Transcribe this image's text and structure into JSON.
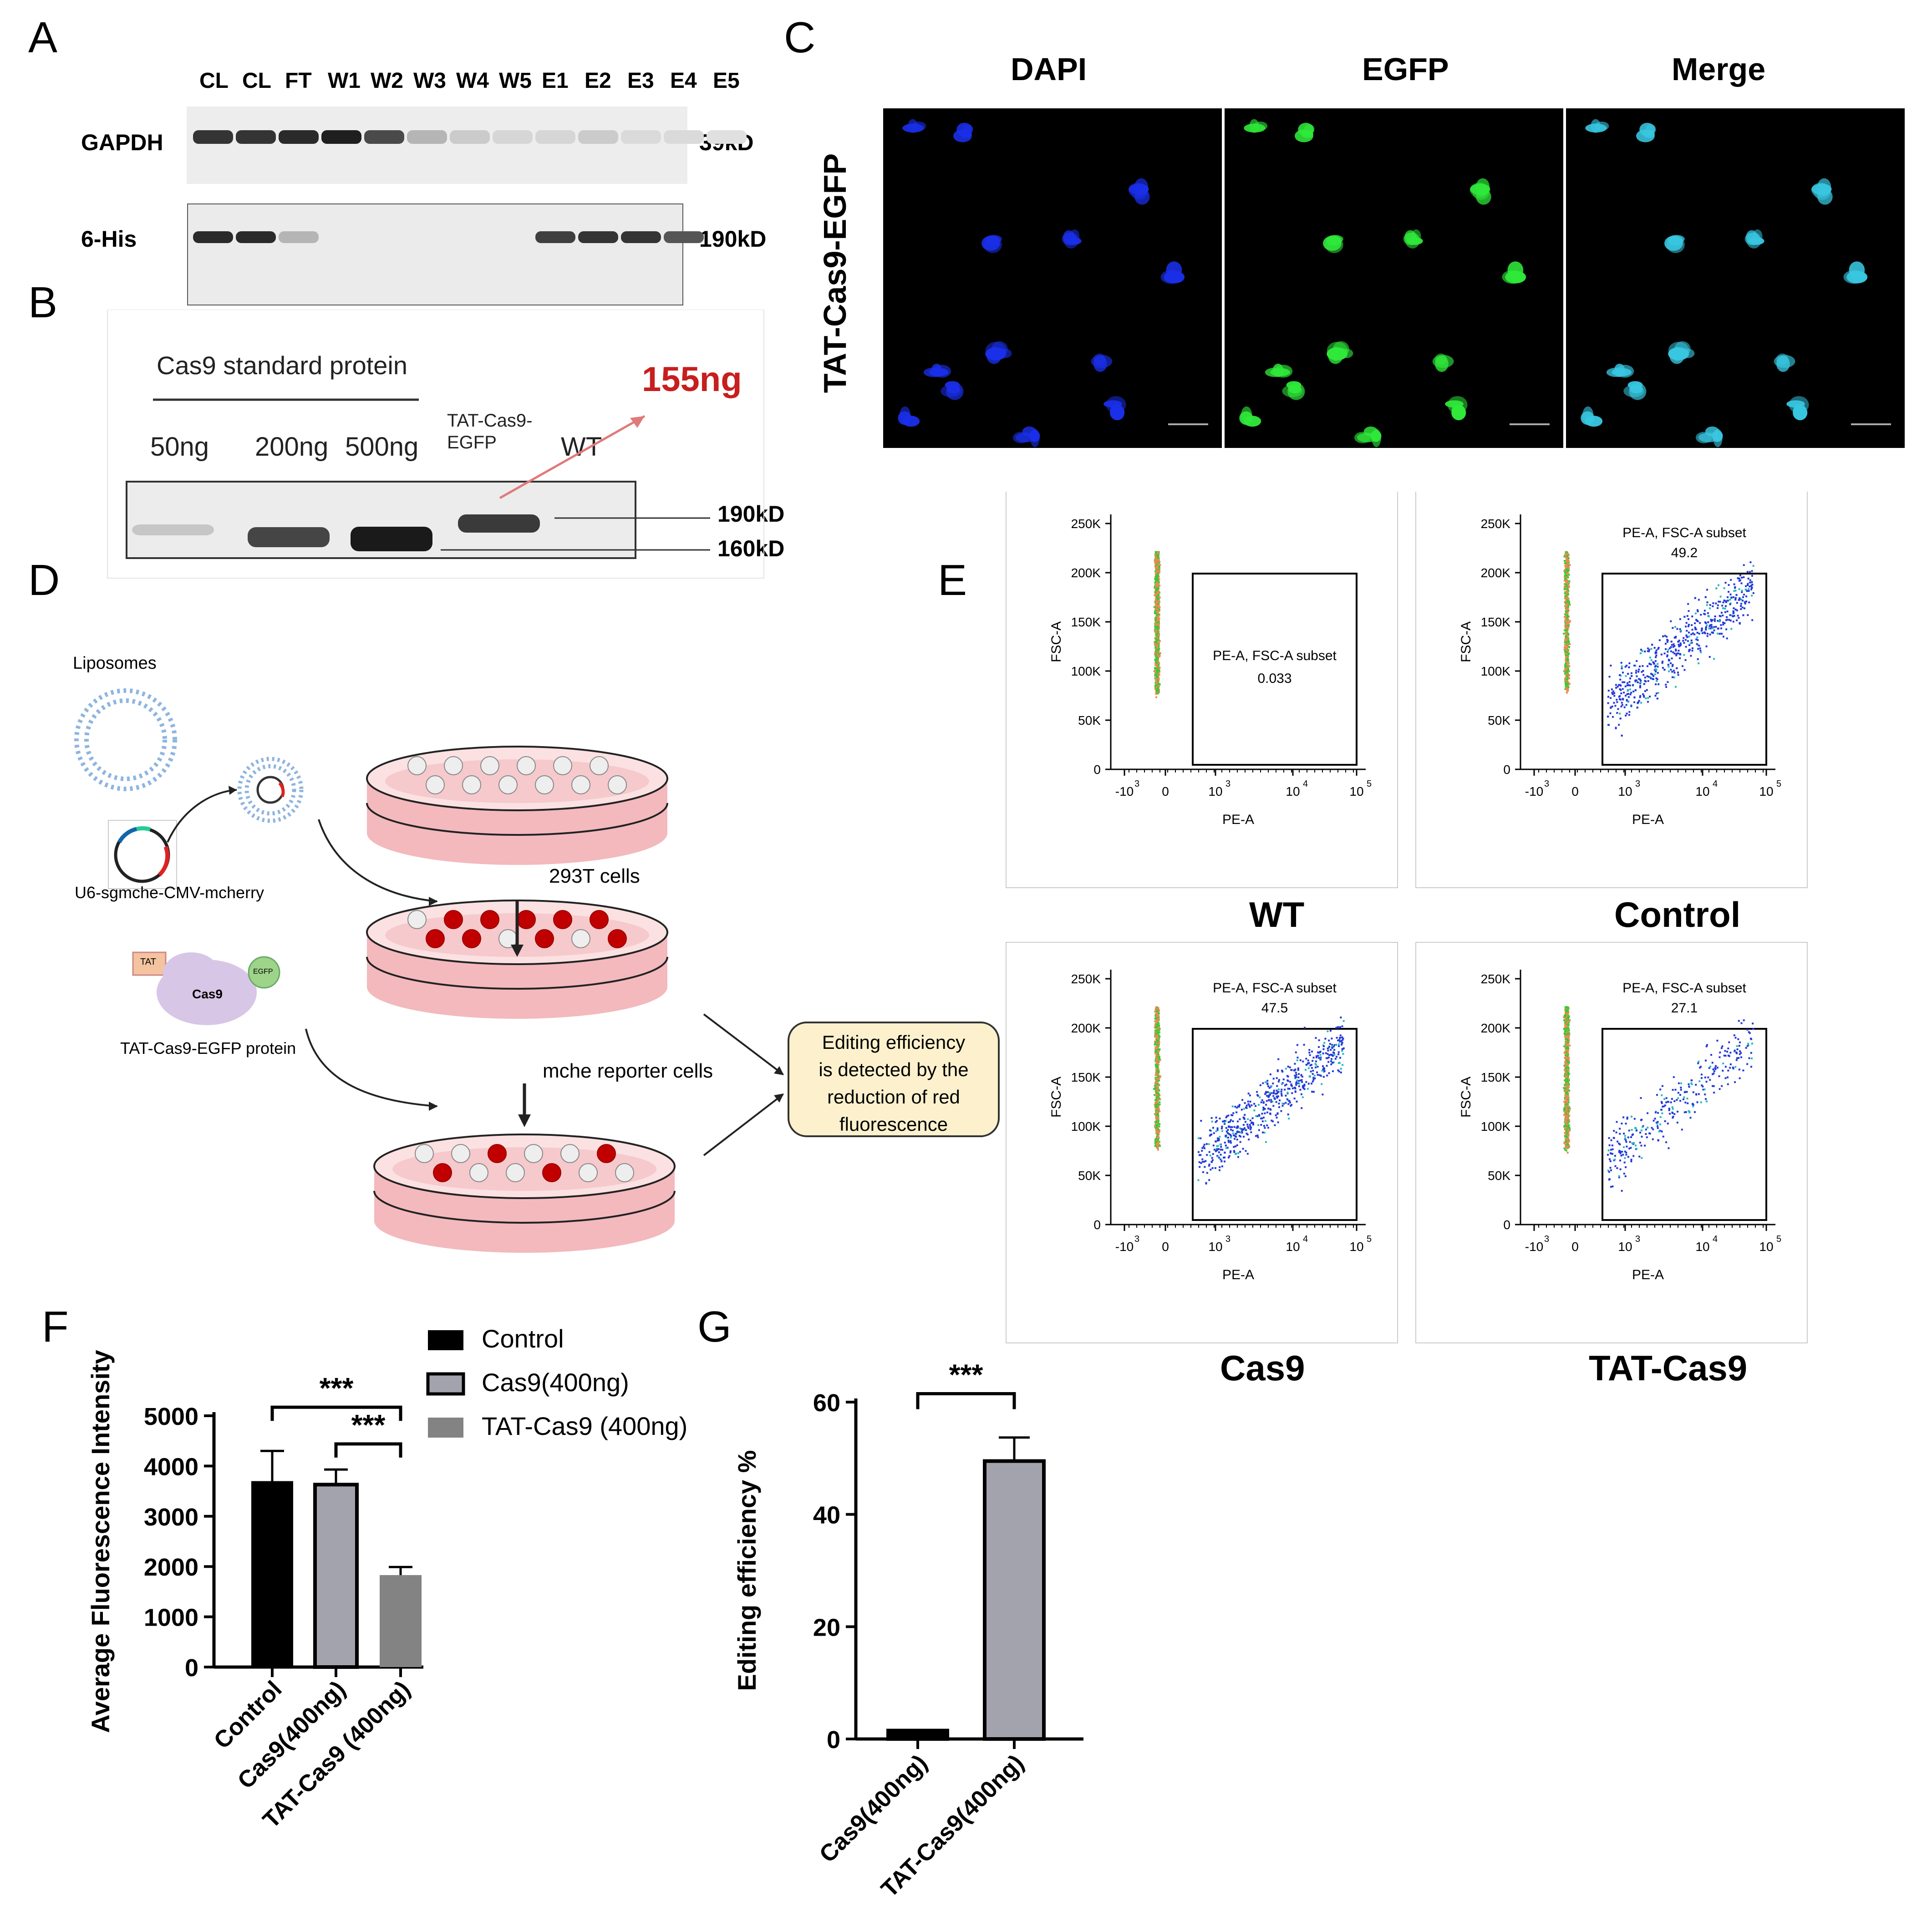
{
  "panel_labels": {
    "a": "A",
    "b": "B",
    "c": "C",
    "d": "D",
    "e": "E",
    "f": "F",
    "g": "G"
  },
  "panel_a": {
    "lanes": [
      "CL",
      "CL",
      "FT",
      "W1",
      "W2",
      "W3",
      "W4",
      "W5",
      "E1",
      "E2",
      "E3",
      "E4",
      "E5"
    ],
    "rows": [
      {
        "name": "GAPDH",
        "size": "39kD",
        "intensity": [
          0.85,
          0.85,
          0.9,
          0.95,
          0.75,
          0.25,
          0.15,
          0.1,
          0.1,
          0.15,
          0.08,
          0.08,
          0.05
        ]
      },
      {
        "name": "6-His",
        "size": "190kD",
        "intensity": [
          0.9,
          0.9,
          0.25,
          0,
          0,
          0,
          0,
          0,
          0.8,
          0.85,
          0.85,
          0.7,
          0
        ]
      }
    ]
  },
  "panel_b": {
    "standard_label": "Cas9 standard protein",
    "lanes": [
      "50ng",
      "200ng",
      "500ng"
    ],
    "tat_lane_line1": "TAT-Cas9-",
    "tat_lane_line2": "EGFP",
    "wt_lane": "WT",
    "estimate": "155ng",
    "marker_upper": "190kD",
    "marker_lower": "160kD",
    "intensity": [
      0.15,
      0.75,
      0.95,
      0.8,
      0
    ]
  },
  "panel_c": {
    "row_label": "TAT-Cas9-EGFP",
    "columns": [
      "DAPI",
      "EGFP",
      "Merge"
    ],
    "colors": {
      "dapi": "#1a2fe8",
      "egfp": "#2fe83a",
      "merge": "#38c6e0"
    }
  },
  "panel_d": {
    "liposomes_label": "Liposomes",
    "plasmid_label": "U6-sgmche-CMV-mcherry",
    "cells_label": "293T cells",
    "protein_tat": "TAT",
    "protein_cas9": "Cas9",
    "protein_egfp": "EGFP",
    "protein_label": "TAT-Cas9-EGFP protein",
    "reporter_label": "mche reporter cells",
    "box_lines": [
      "Editing efficiency",
      "is detected by the",
      "reduction of red",
      "fluorescence"
    ]
  },
  "panel_e": {
    "x_axis_label": "PE-A",
    "y_axis_label": "FSC-A",
    "y_ticks": [
      "0",
      "50K",
      "100K",
      "150K",
      "200K",
      "250K"
    ],
    "x_ticks": [
      "-10",
      "0",
      "10",
      "10",
      "10"
    ],
    "x_exponents": [
      "3",
      "",
      "3",
      "4",
      "5"
    ],
    "plots": [
      {
        "name": "WT",
        "gate_label": "PE-A, FSC-A subset",
        "gate_value": "0.033",
        "spread": 0.0
      },
      {
        "name": "Control",
        "gate_label": "PE-A, FSC-A subset",
        "gate_value": "49.2",
        "spread": 0.492
      },
      {
        "name": "Cas9",
        "gate_label": "PE-A, FSC-A subset",
        "gate_value": "47.5",
        "spread": 0.475
      },
      {
        "name": "TAT-Cas9",
        "gate_label": "PE-A, FSC-A subset",
        "gate_value": "27.1",
        "spread": 0.271
      }
    ]
  },
  "chart_data": [
    {
      "type": "bar",
      "panel": "F",
      "categories": [
        "Control",
        "Cas9(400ng)",
        "TAT-Cas9 (400ng)"
      ],
      "values": [
        3700,
        3630,
        1830
      ],
      "errors": [
        600,
        300,
        160
      ],
      "ylabel": "Average Fluorescence Intensity",
      "ylim": [
        0,
        5000
      ],
      "yticks": [
        "0",
        "1000",
        "2000",
        "3000",
        "4000",
        "5000"
      ],
      "legend": [
        "Control",
        "Cas9(400ng)",
        "TAT-Cas9 (400ng)"
      ],
      "legend_placement": "top-right",
      "significance": [
        "***",
        "***"
      ],
      "colors": [
        "#000000",
        "#a3a3ad",
        "#838383"
      ]
    },
    {
      "type": "bar",
      "panel": "G",
      "categories": [
        "Cas9(400ng)",
        "TAT-Cas9(400ng)"
      ],
      "values": [
        1.5,
        49.5
      ],
      "errors": [
        0,
        4.2
      ],
      "ylabel": "Editing efficiency %",
      "ylim": [
        0,
        60
      ],
      "yticks": [
        "0",
        "20",
        "40",
        "60"
      ],
      "significance": [
        "***"
      ],
      "colors": [
        "#000000",
        "#a3a3ad"
      ]
    }
  ]
}
